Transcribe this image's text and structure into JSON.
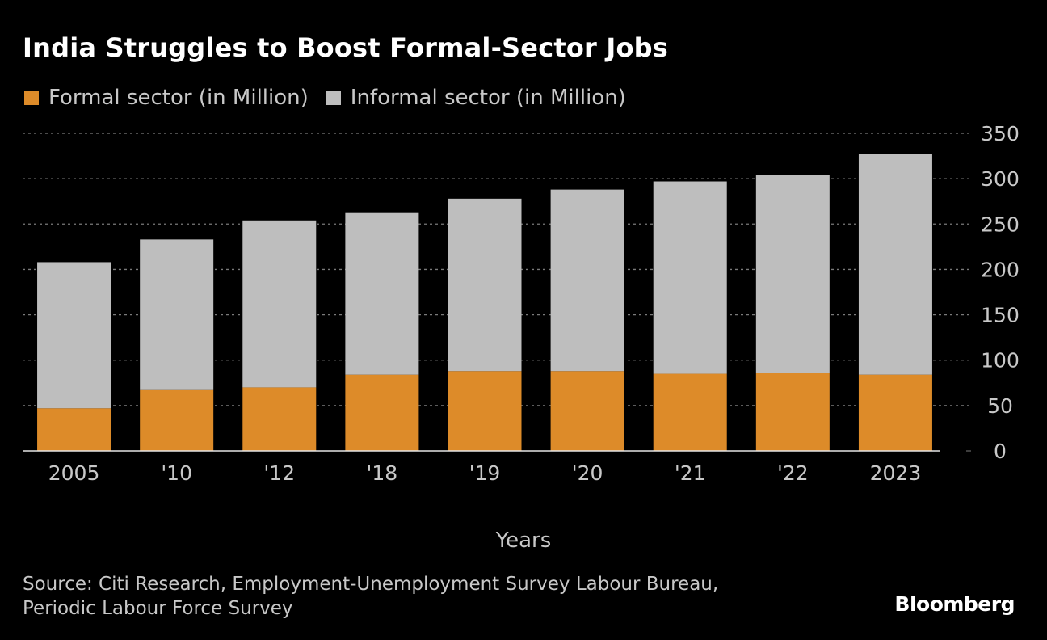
{
  "chart_data": {
    "type": "bar",
    "stacked": true,
    "title": "India Struggles to Boost Formal-Sector Jobs",
    "xlabel": "Years",
    "ylabel": "",
    "categories": [
      "2005",
      "'10",
      "'12",
      "'18",
      "'19",
      "'20",
      "'21",
      "'22",
      "2023"
    ],
    "series": [
      {
        "name": "Formal sector (in Million)",
        "color": "#dd8b29",
        "values": [
          47,
          67,
          70,
          84,
          88,
          88,
          85,
          86,
          84
        ]
      },
      {
        "name": "Informal sector (in Million)",
        "color": "#bebebe",
        "values": [
          161,
          166,
          184,
          179,
          190,
          200,
          212,
          218,
          243
        ]
      }
    ],
    "ylim": [
      0,
      350
    ],
    "yticks": [
      0,
      50,
      100,
      150,
      200,
      250,
      300,
      350
    ],
    "grid": true,
    "y_axis_side": "right",
    "legend_position": "top-left"
  },
  "source": {
    "line1": "Source: Citi Research, Employment-Unemployment Survey Labour Bureau,",
    "line2": "Periodic Labour Force Survey"
  },
  "brand": "Bloomberg"
}
